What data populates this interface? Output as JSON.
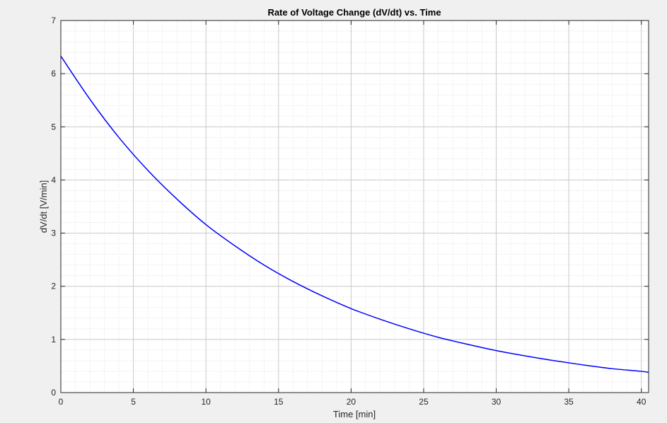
{
  "chart_data": {
    "type": "line",
    "title": "Rate of Voltage Change (dV/dt) vs. Time",
    "xlabel": "Time [min]",
    "ylabel": "dV/dt [V/min]",
    "xlim": [
      0,
      40.5
    ],
    "ylim": [
      0,
      7
    ],
    "xticks": [
      0,
      5,
      10,
      15,
      20,
      25,
      30,
      35,
      40
    ],
    "yticks": [
      0,
      1,
      2,
      3,
      4,
      5,
      6,
      7
    ],
    "xtick_labels": [
      "0",
      "5",
      "10",
      "15",
      "20",
      "25",
      "30",
      "35",
      "40"
    ],
    "ytick_labels": [
      "0",
      "1",
      "2",
      "3",
      "4",
      "5",
      "6",
      "7"
    ],
    "grid": true,
    "minor_grid": true,
    "background": "#f0f0f0",
    "plot_background": "#ffffff",
    "series": [
      {
        "color": "#0000ff",
        "x": [
          0,
          2,
          4,
          6,
          8,
          10,
          12,
          14,
          16,
          18,
          20,
          22,
          24,
          26,
          28,
          30,
          32,
          34,
          36,
          38,
          40,
          40.5
        ],
        "y": [
          6.33,
          5.52,
          4.8,
          4.18,
          3.64,
          3.16,
          2.76,
          2.4,
          2.09,
          1.82,
          1.58,
          1.38,
          1.2,
          1.04,
          0.91,
          0.79,
          0.69,
          0.6,
          0.52,
          0.45,
          0.4,
          0.38
        ]
      }
    ]
  }
}
